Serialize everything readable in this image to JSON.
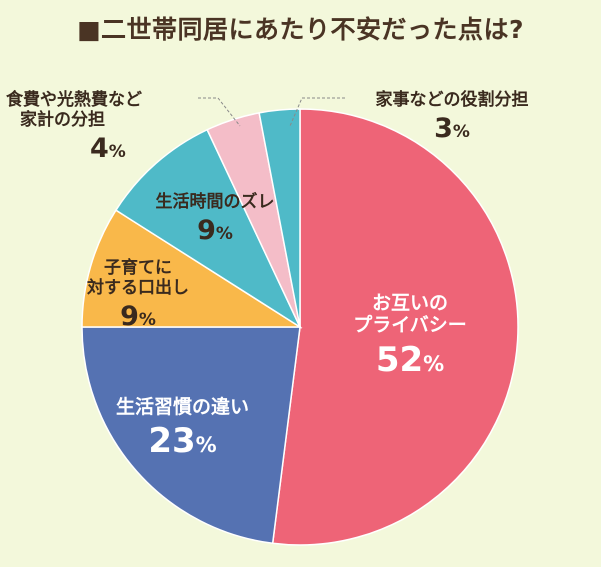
{
  "title": "■二世帯同居にあたり不安だった点は?",
  "chart_data": {
    "type": "pie",
    "title": "■二世帯同居にあたり不安だった点は?",
    "unit": "%",
    "categories": [
      "お互いのプライバシー",
      "生活習慣の違い",
      "子育てに対する口出し",
      "生活時間のズレ",
      "食費や光熱費など家計の分担",
      "家事などの役割分担"
    ],
    "values": [
      52,
      23,
      9,
      9,
      4,
      3
    ],
    "colors": [
      "#ee6477",
      "#5572b2",
      "#f9b84a",
      "#4fbac8",
      "#f4bdc8",
      "#4fbac8"
    ],
    "labels": [
      {
        "line1": "お互いの",
        "line2": "プライバシー",
        "pct": "52"
      },
      {
        "line1": "生活習慣の違い",
        "line2": "",
        "pct": "23"
      },
      {
        "line1": "子育てに",
        "line2": "対する口出し",
        "pct": "9"
      },
      {
        "line1": "生活時間のズレ",
        "line2": "",
        "pct": "9"
      },
      {
        "line1": "食費や光熱費など",
        "line2": "家計の分担",
        "pct": "4"
      },
      {
        "line1": "家事などの役割分担",
        "line2": "",
        "pct": "3"
      }
    ],
    "percent_sign": "%",
    "legend": "none"
  }
}
